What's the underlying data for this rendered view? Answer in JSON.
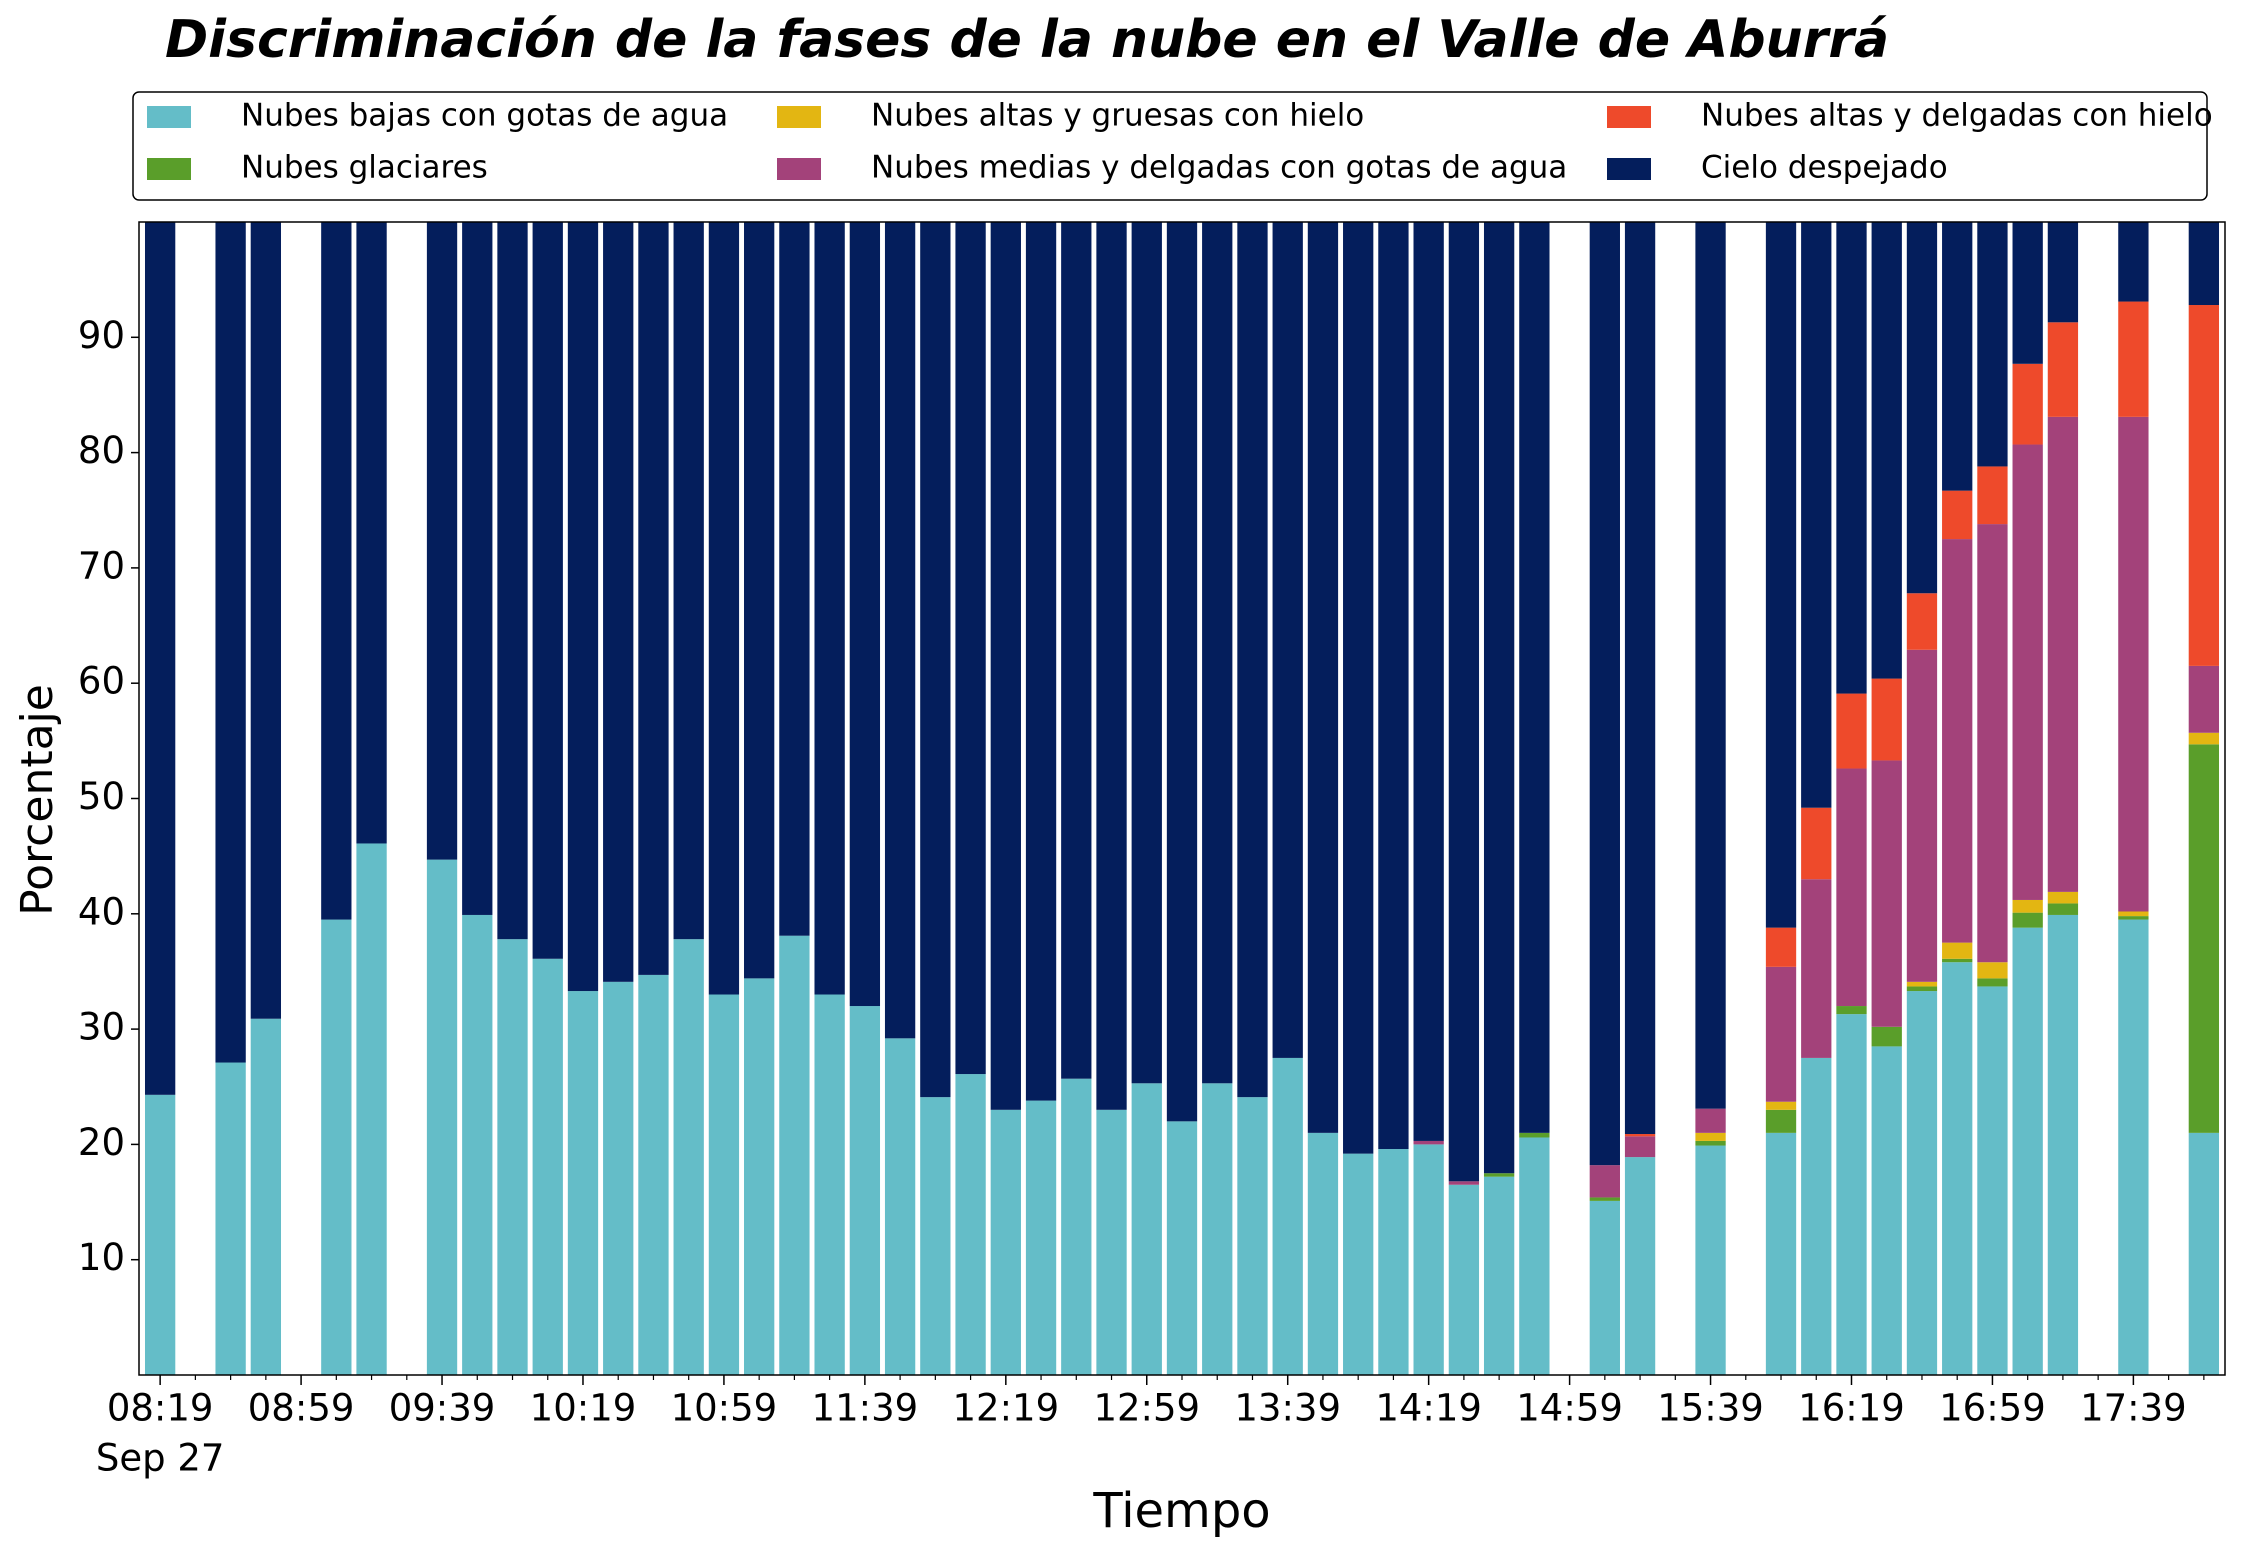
{
  "chart_data": {
    "type": "stacked_bar",
    "title": "Discriminación de la fases de la nube en el Valle de Aburrá",
    "x_label": "Tiempo",
    "y_label": "Porcentaje",
    "x_sublabel": "Sep 27",
    "categories": [
      "08:19",
      null,
      null,
      null,
      "08:59",
      null,
      null,
      null,
      "09:39",
      null,
      null,
      null,
      "10:19",
      null,
      null,
      null,
      "10:59",
      null,
      null,
      null,
      "11:39",
      null,
      null,
      null,
      "12:19",
      null,
      null,
      null,
      "12:59",
      null,
      null,
      null,
      "13:39",
      null,
      null,
      null,
      "14:19",
      null,
      null,
      null,
      "14:59",
      null,
      null,
      null,
      "15:39",
      null,
      null,
      null,
      "16:19",
      null,
      null,
      null,
      "16:59",
      null,
      null,
      null,
      "17:39",
      null,
      null
    ],
    "ylim": [
      0,
      100
    ],
    "yticks": [
      10,
      20,
      30,
      40,
      50,
      60,
      70,
      80,
      90
    ],
    "legend": "top",
    "grid": false,
    "series": [
      {
        "name": "Nubes bajas con gotas de agua",
        "color": "#64bdc8",
        "values": [
          24.3,
          null,
          27.1,
          30.9,
          null,
          39.5,
          46.1,
          null,
          44.7,
          39.9,
          37.8,
          36.1,
          33.3,
          34.1,
          34.7,
          37.8,
          33.0,
          34.4,
          38.1,
          33.0,
          32.0,
          29.2,
          24.1,
          26.1,
          23.0,
          23.8,
          25.7,
          23.0,
          25.3,
          22.0,
          25.3,
          24.1,
          27.5,
          21.0,
          19.2,
          19.6,
          20.0,
          16.5,
          17.2,
          20.6,
          null,
          15.1,
          18.9,
          null,
          19.9,
          null,
          21.0,
          27.5,
          31.3,
          28.5,
          33.3,
          35.8,
          33.7,
          38.8,
          39.9,
          null,
          39.5,
          null,
          21.0
        ]
      },
      {
        "name": "Nubes glaciares",
        "color": "#5a9e2a",
        "values": [
          0,
          null,
          0,
          0,
          null,
          0,
          0,
          null,
          0,
          0,
          0,
          0,
          0,
          0,
          0,
          0,
          0,
          0,
          0,
          0,
          0,
          0,
          0,
          0,
          0,
          0,
          0,
          0,
          0,
          0,
          0,
          0,
          0,
          0,
          0,
          0,
          0,
          0,
          0.3,
          0.4,
          null,
          0.3,
          0,
          null,
          0.4,
          null,
          2.0,
          0,
          0.7,
          1.7,
          0.4,
          0.3,
          0.7,
          1.3,
          1.0,
          null,
          0.3,
          null,
          33.7
        ]
      },
      {
        "name": "Nubes altas y gruesas con hielo",
        "color": "#e3b612",
        "values": [
          0,
          null,
          0,
          0,
          null,
          0,
          0,
          null,
          0,
          0,
          0,
          0,
          0,
          0,
          0,
          0,
          0,
          0,
          0,
          0,
          0,
          0,
          0,
          0,
          0,
          0,
          0,
          0,
          0,
          0,
          0,
          0,
          0,
          0,
          0,
          0,
          0,
          0,
          0,
          0,
          null,
          0,
          0,
          null,
          0.7,
          null,
          0.7,
          0,
          0,
          0,
          0.4,
          1.4,
          1.4,
          1.1,
          1.0,
          null,
          0.4,
          null,
          1.0
        ]
      },
      {
        "name": "Nubes medias y delgadas con gotas de agua",
        "color": "#a3427a",
        "values": [
          0,
          null,
          0,
          0,
          null,
          0,
          0,
          null,
          0,
          0,
          0,
          0,
          0,
          0,
          0,
          0,
          0,
          0,
          0,
          0,
          0,
          0,
          0,
          0,
          0,
          0,
          0,
          0,
          0,
          0,
          0,
          0,
          0,
          0,
          0,
          0,
          0.3,
          0.3,
          0,
          0,
          null,
          2.8,
          1.8,
          null,
          2.1,
          null,
          11.7,
          15.5,
          20.6,
          23.1,
          28.8,
          35.0,
          38.0,
          39.5,
          41.2,
          null,
          42.9,
          null,
          5.8
        ]
      },
      {
        "name": "Nubes altas y delgadas con hielo",
        "color": "#ee4a2b",
        "values": [
          0,
          null,
          0,
          0,
          null,
          0,
          0,
          null,
          0,
          0,
          0,
          0,
          0,
          0,
          0,
          0,
          0,
          0,
          0,
          0,
          0,
          0,
          0,
          0,
          0,
          0,
          0,
          0,
          0,
          0,
          0,
          0,
          0,
          0,
          0,
          0,
          0,
          0,
          0,
          0,
          null,
          0,
          0.2,
          null,
          0,
          null,
          3.4,
          6.2,
          6.5,
          7.1,
          4.9,
          4.2,
          5.0,
          7.0,
          8.2,
          null,
          10.0,
          null,
          31.3
        ]
      },
      {
        "name": "Cielo despejado",
        "color": "#041e5c",
        "values": [
          75.7,
          null,
          72.9,
          69.1,
          null,
          60.5,
          53.9,
          null,
          55.3,
          60.1,
          62.2,
          63.9,
          66.7,
          65.9,
          65.3,
          62.2,
          67.0,
          65.6,
          61.9,
          67.0,
          68.0,
          70.8,
          75.9,
          73.9,
          77.0,
          76.2,
          74.3,
          77.0,
          74.7,
          78.0,
          74.7,
          75.9,
          72.5,
          79.0,
          80.8,
          80.4,
          79.7,
          83.2,
          82.5,
          79.0,
          null,
          81.8,
          79.1,
          null,
          76.9,
          null,
          61.2,
          50.8,
          40.9,
          39.6,
          32.2,
          23.3,
          21.2,
          12.3,
          8.7,
          null,
          6.9,
          null,
          7.2
        ]
      }
    ]
  }
}
